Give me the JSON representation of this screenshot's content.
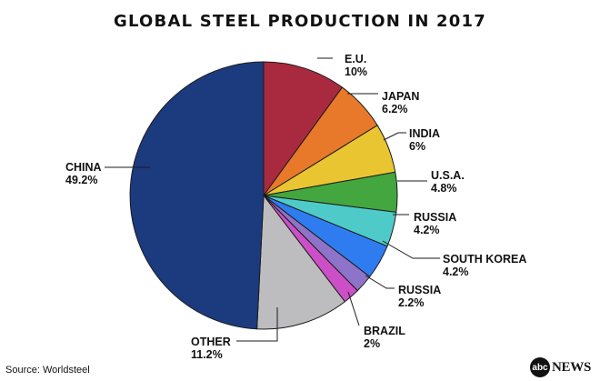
{
  "chart_data": {
    "type": "pie",
    "title": "GLOBAL STEEL PRODUCTION IN 2017",
    "start_angle": "12 o'clock",
    "direction": "clockwise",
    "slices": [
      {
        "name": "E.U.",
        "value": 10,
        "label": "10%",
        "color": "#a92a3f"
      },
      {
        "name": "JAPAN",
        "value": 6.2,
        "label": "6.2%",
        "color": "#e8792a"
      },
      {
        "name": "INDIA",
        "value": 6,
        "label": "6%",
        "color": "#e9c532"
      },
      {
        "name": "U.S.A.",
        "value": 4.8,
        "label": "4.8%",
        "color": "#43a63e"
      },
      {
        "name": "RUSSIA",
        "value": 4.2,
        "label": "4.2%",
        "color": "#4ecbc8"
      },
      {
        "name": "SOUTH KOREA",
        "value": 4.2,
        "label": "4.2%",
        "color": "#2f7cf0"
      },
      {
        "name": "RUSSIA",
        "value": 2.2,
        "label": "2.2%",
        "color": "#8e74c8"
      },
      {
        "name": "BRAZIL",
        "value": 2,
        "label": "2%",
        "color": "#cc4fc8"
      },
      {
        "name": "OTHER",
        "value": 11.2,
        "label": "11.2%",
        "color": "#bdbdbf"
      },
      {
        "name": "CHINA",
        "value": 49.2,
        "label": "49.2%",
        "color": "#1c3a7e"
      }
    ]
  },
  "footer": {
    "source": "Source: Worldsteel",
    "logo_mark": "abc",
    "logo_word": "NEWS"
  }
}
